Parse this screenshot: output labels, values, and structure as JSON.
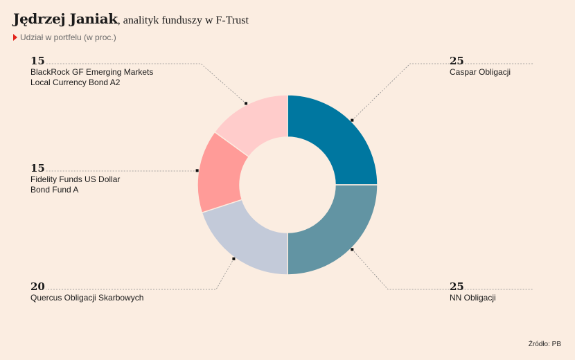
{
  "header": {
    "title_name": "Jędrzej Janiak",
    "title_rest": ", analityk funduszy w F-Trust",
    "subtitle": "Udział w portfelu (w proc.)"
  },
  "chart_data": {
    "type": "pie",
    "title": "Jędrzej Janiak, analityk funduszy w F-Trust",
    "subtitle": "Udział w portfelu (w proc.)",
    "slices": [
      {
        "name": "Caspar Obligacji",
        "value": 25,
        "color": "#0077A0"
      },
      {
        "name": "NN Obligacji",
        "value": 25,
        "color": "#6294A3"
      },
      {
        "name": "Quercus Obligacji Skarbowych",
        "value": 20,
        "color": "#C3CAD9"
      },
      {
        "name": "Fidelity Funds US Dollar\nBond Fund A",
        "value": 15,
        "color": "#FF9B98"
      },
      {
        "name": "BlackRock GF Emerging Markets\nLocal Currency Bond A2",
        "value": 15,
        "color": "#FFCCCB"
      }
    ]
  },
  "footer": {
    "source": "Źródło: PB"
  }
}
